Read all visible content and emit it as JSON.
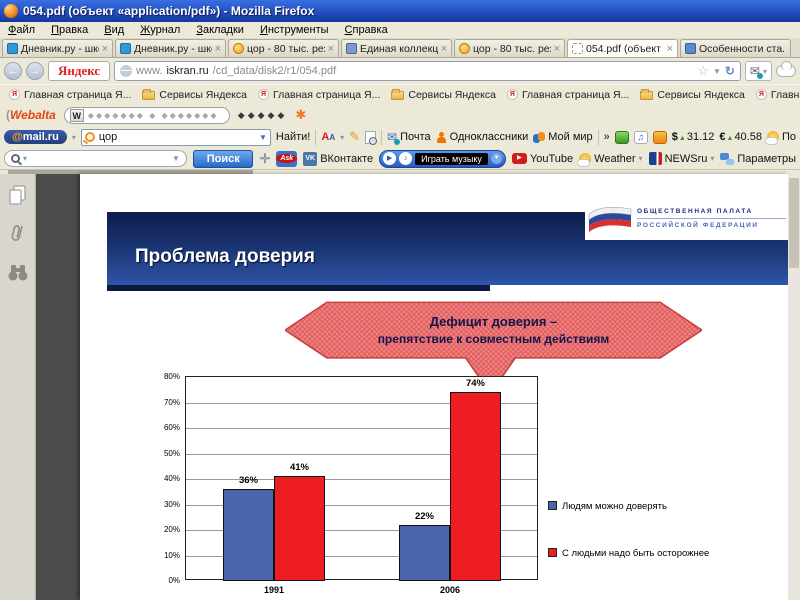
{
  "window": {
    "title": "054.pdf (объект «application/pdf») - Mozilla Firefox"
  },
  "menu": [
    "Файл",
    "Правка",
    "Вид",
    "Журнал",
    "Закладки",
    "Инструменты",
    "Справка"
  ],
  "tabs": [
    {
      "label": "Дневник.ру - шко...",
      "icon": "dnevnik",
      "close": "×",
      "active": false
    },
    {
      "label": "Дневник.ру - шко...",
      "icon": "dnevnik",
      "close": "×",
      "active": false
    },
    {
      "label": "цор - 80 тыс. рез...",
      "icon": "search",
      "close": "×",
      "active": false
    },
    {
      "label": "Единая коллекци...",
      "icon": "collection",
      "close": "×",
      "active": false
    },
    {
      "label": "цор - 80 тыс. рез...",
      "icon": "search",
      "close": "×",
      "active": false
    },
    {
      "label": "054.pdf (объект ...",
      "icon": "pdf",
      "close": "×",
      "active": true
    },
    {
      "label": "Особенности ста...",
      "icon": "doc",
      "close": "",
      "active": false
    }
  ],
  "navbar": {
    "back": "←",
    "forward": "→",
    "yandex": "Яндекс",
    "url_www": "www.",
    "url_host": "iskran.ru",
    "url_path": "/cd_data/disk2/r1/054.pdf",
    "star": "☆",
    "reload": "↻"
  },
  "bookmarks": [
    {
      "icon": "ya",
      "label": "Главная страница Я..."
    },
    {
      "icon": "folder",
      "label": "Сервисы Яндекса"
    },
    {
      "icon": "ya",
      "label": "Главная страница Я..."
    },
    {
      "icon": "folder",
      "label": "Сервисы Яндекса"
    },
    {
      "icon": "ya",
      "label": "Главная страница Я..."
    },
    {
      "icon": "folder",
      "label": "Сервисы Яндекса"
    },
    {
      "icon": "ya",
      "label": "Главная страница Я..."
    }
  ],
  "webalta": {
    "logo": "Webalta",
    "w_button": "W",
    "icons_inside": "◆◆◆◆◆◆◆ ◆ ◆◆◆◆◆◆◆",
    "icons_outside": "◆◆◆◆◆",
    "sun": "✱"
  },
  "mailru": {
    "logo_at": "@",
    "logo_text": "mail.ru",
    "query": "цор",
    "find_button": "Найти!",
    "mail": "Почта",
    "odkl": "Одноклассники",
    "world": "Мой мир",
    "more": "»",
    "usd_symbol": "$",
    "usd": "31.12",
    "eur_symbol": "€",
    "eur": "40.58",
    "weather": "По"
  },
  "searchbar": {
    "search_button": "Поиск",
    "ask": "Ask",
    "vk_abbr": "VK",
    "vk": "ВКонтакте",
    "player": "Играть музыку",
    "youtube": "YouTube",
    "weather": "Weather",
    "newsru": "NEWSru",
    "params": "Параметры"
  },
  "slide": {
    "title": "Проблема доверия",
    "logo_line1": "ОБЩЕСТВЕННАЯ ПАЛАТА",
    "logo_line2": "РОССИЙСКОЙ ФЕДЕРАЦИИ",
    "callout_line1": "Дефицит доверия –",
    "callout_line2": "препятствие к совместным действиям"
  },
  "chart_data": {
    "type": "bar",
    "categories": [
      "1991",
      "2006"
    ],
    "series": [
      {
        "name": "Людям можно доверять",
        "color": "#4a64ae",
        "values": [
          36,
          22
        ]
      },
      {
        "name": "С людьми надо быть осторожнее",
        "color": "#ee1d23",
        "values": [
          41,
          74
        ]
      }
    ],
    "ylim": [
      0,
      80
    ],
    "ytick_step": 10,
    "ytick_suffix": "%",
    "value_label_suffix": "%",
    "grid": true,
    "legend_position": "right"
  }
}
